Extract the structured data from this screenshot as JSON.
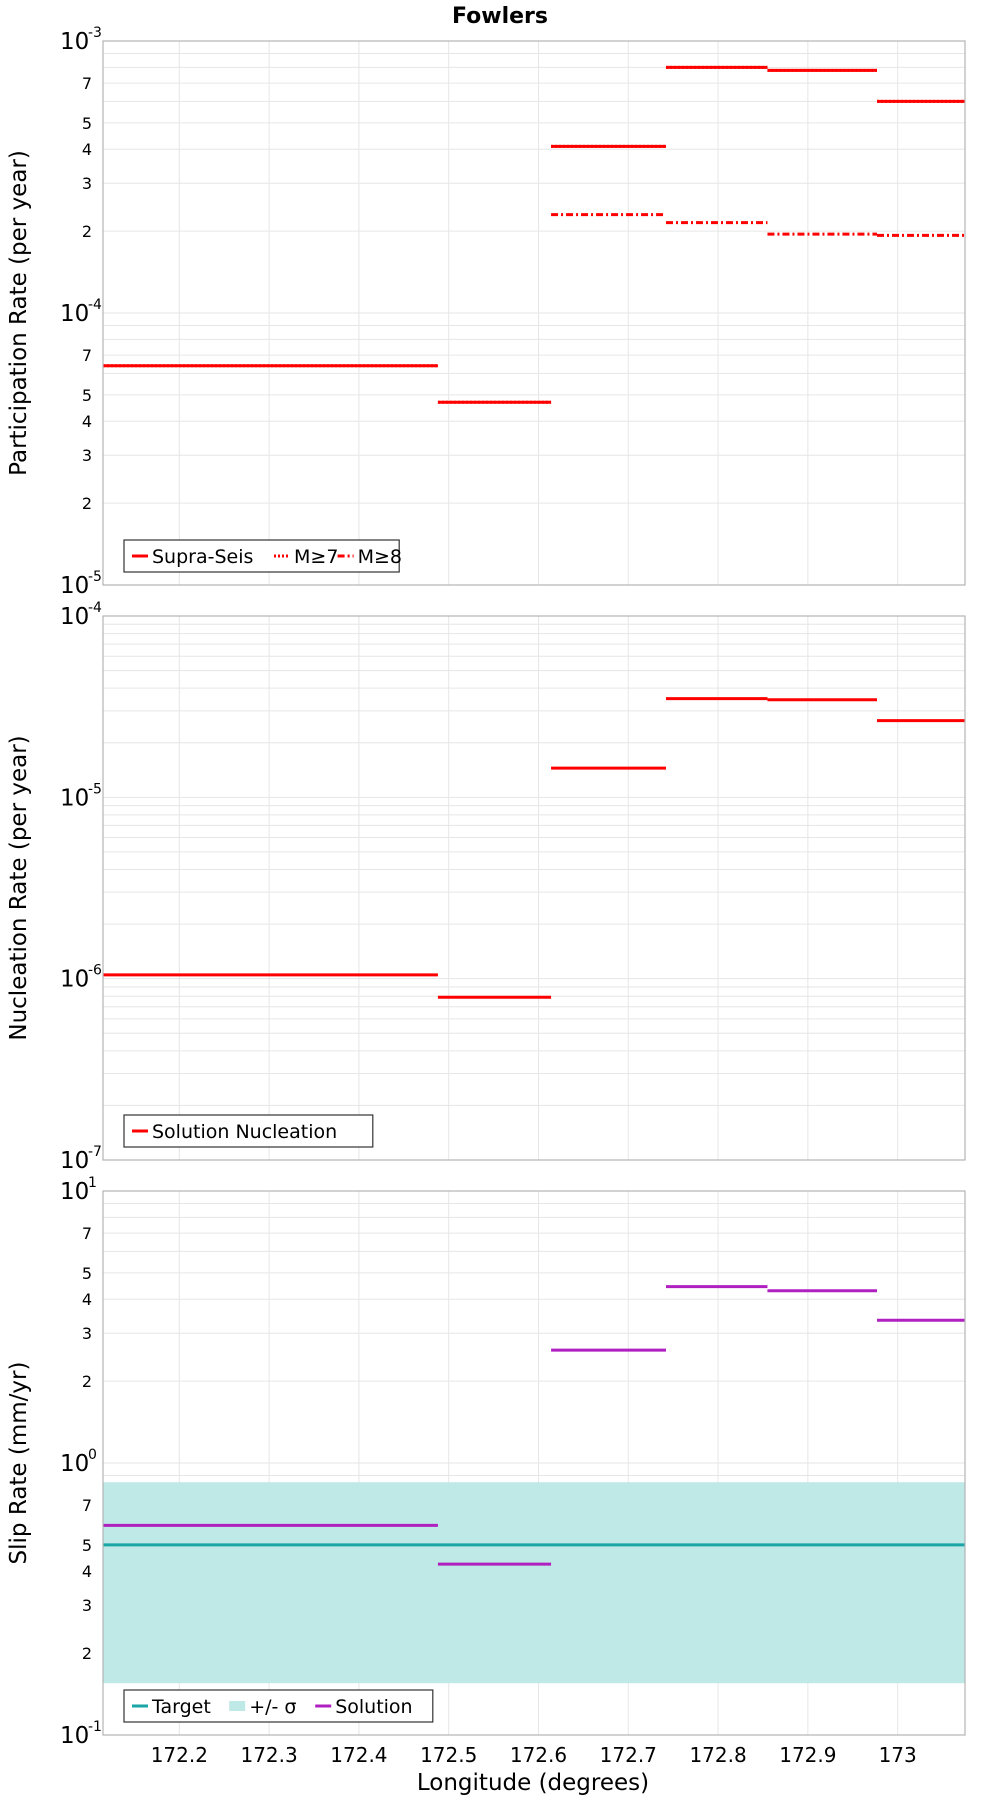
{
  "chart_data": {
    "title": "Fowlers",
    "xlabel": "Longitude (degrees)",
    "xlim": [
      172.115,
      173.075
    ],
    "xticks": [
      "172.2",
      "172.3",
      "172.4",
      "172.5",
      "172.6",
      "172.7",
      "172.8",
      "172.9",
      "173"
    ],
    "panels": [
      {
        "type": "line",
        "scale": "log",
        "ylabel": "Participation Rate (per year)",
        "ylim": [
          1e-05,
          0.001
        ],
        "major_ticks": [
          {
            "base": "10",
            "exp": "-5"
          },
          {
            "base": "10",
            "exp": "-4"
          },
          {
            "base": "10",
            "exp": "-3"
          }
        ],
        "minor_labels": [
          "2",
          "3",
          "4",
          "5",
          "7"
        ],
        "legend": [
          "Supra-Seis",
          "M≥7",
          "M≥8"
        ],
        "series": [
          {
            "name": "Supra-Seis",
            "color": "#ff0000",
            "dash": "solid",
            "segments": [
              [
                172.115,
                172.488,
                6.4e-05
              ],
              [
                172.488,
                172.614,
                4.7e-05
              ],
              [
                172.614,
                172.742,
                0.00041
              ],
              [
                172.742,
                172.855,
                0.0008
              ],
              [
                172.855,
                172.977,
                0.00078
              ],
              [
                172.977,
                173.075,
                0.0006
              ]
            ]
          },
          {
            "name": "M≥7",
            "color": "#ff0000",
            "dash": "dotted",
            "segments": [
              [
                172.115,
                172.488,
                6.4e-05
              ],
              [
                172.488,
                172.614,
                4.7e-05
              ],
              [
                172.614,
                172.742,
                0.00041
              ],
              [
                172.742,
                172.855,
                0.0008
              ],
              [
                172.855,
                172.977,
                0.00078
              ],
              [
                172.977,
                173.075,
                0.0006
              ]
            ]
          },
          {
            "name": "M≥8",
            "color": "#ff0000",
            "dash": "dashdot",
            "segments": [
              [
                172.614,
                172.742,
                0.00023
              ],
              [
                172.742,
                172.855,
                0.000215
              ],
              [
                172.855,
                172.977,
                0.000195
              ],
              [
                172.977,
                173.075,
                0.000193
              ]
            ]
          }
        ]
      },
      {
        "type": "line",
        "scale": "log",
        "ylabel": "Nucleation Rate (per year)",
        "ylim": [
          1e-07,
          0.0001
        ],
        "major_ticks": [
          {
            "base": "10",
            "exp": "-7"
          },
          {
            "base": "10",
            "exp": "-6"
          },
          {
            "base": "10",
            "exp": "-5"
          },
          {
            "base": "10",
            "exp": "-4"
          }
        ],
        "minor_labels": [],
        "legend": [
          "Solution Nucleation"
        ],
        "series": [
          {
            "name": "Solution Nucleation",
            "color": "#ff0000",
            "dash": "solid",
            "segments": [
              [
                172.115,
                172.488,
                1.05e-06
              ],
              [
                172.488,
                172.614,
                7.9e-07
              ],
              [
                172.614,
                172.742,
                1.45e-05
              ],
              [
                172.742,
                172.855,
                3.5e-05
              ],
              [
                172.855,
                172.977,
                3.45e-05
              ],
              [
                172.977,
                173.075,
                2.65e-05
              ]
            ]
          }
        ]
      },
      {
        "type": "line",
        "scale": "log",
        "ylabel": "Slip Rate (mm/yr)",
        "ylim": [
          0.1,
          10
        ],
        "major_ticks": [
          {
            "base": "10",
            "exp": "-1"
          },
          {
            "base": "10",
            "exp": "0"
          },
          {
            "base": "10",
            "exp": "1"
          }
        ],
        "minor_labels": [
          "2",
          "3",
          "4",
          "5",
          "7"
        ],
        "legend": [
          "Target",
          "+/- σ",
          "Solution"
        ],
        "band": {
          "name": "+/- σ",
          "color": "#bfe9e6",
          "range": [
            0.155,
            0.85
          ]
        },
        "series": [
          {
            "name": "Target",
            "color": "#1aa6a6",
            "dash": "solid",
            "segments": [
              [
                172.115,
                173.075,
                0.5
              ]
            ]
          },
          {
            "name": "Solution",
            "color": "#b020c0",
            "dash": "solid",
            "segments": [
              [
                172.115,
                172.488,
                0.59
              ],
              [
                172.488,
                172.614,
                0.425
              ],
              [
                172.614,
                172.742,
                2.6
              ],
              [
                172.742,
                172.855,
                4.45
              ],
              [
                172.855,
                172.977,
                4.3
              ],
              [
                172.977,
                173.075,
                3.35
              ]
            ]
          }
        ]
      }
    ]
  }
}
